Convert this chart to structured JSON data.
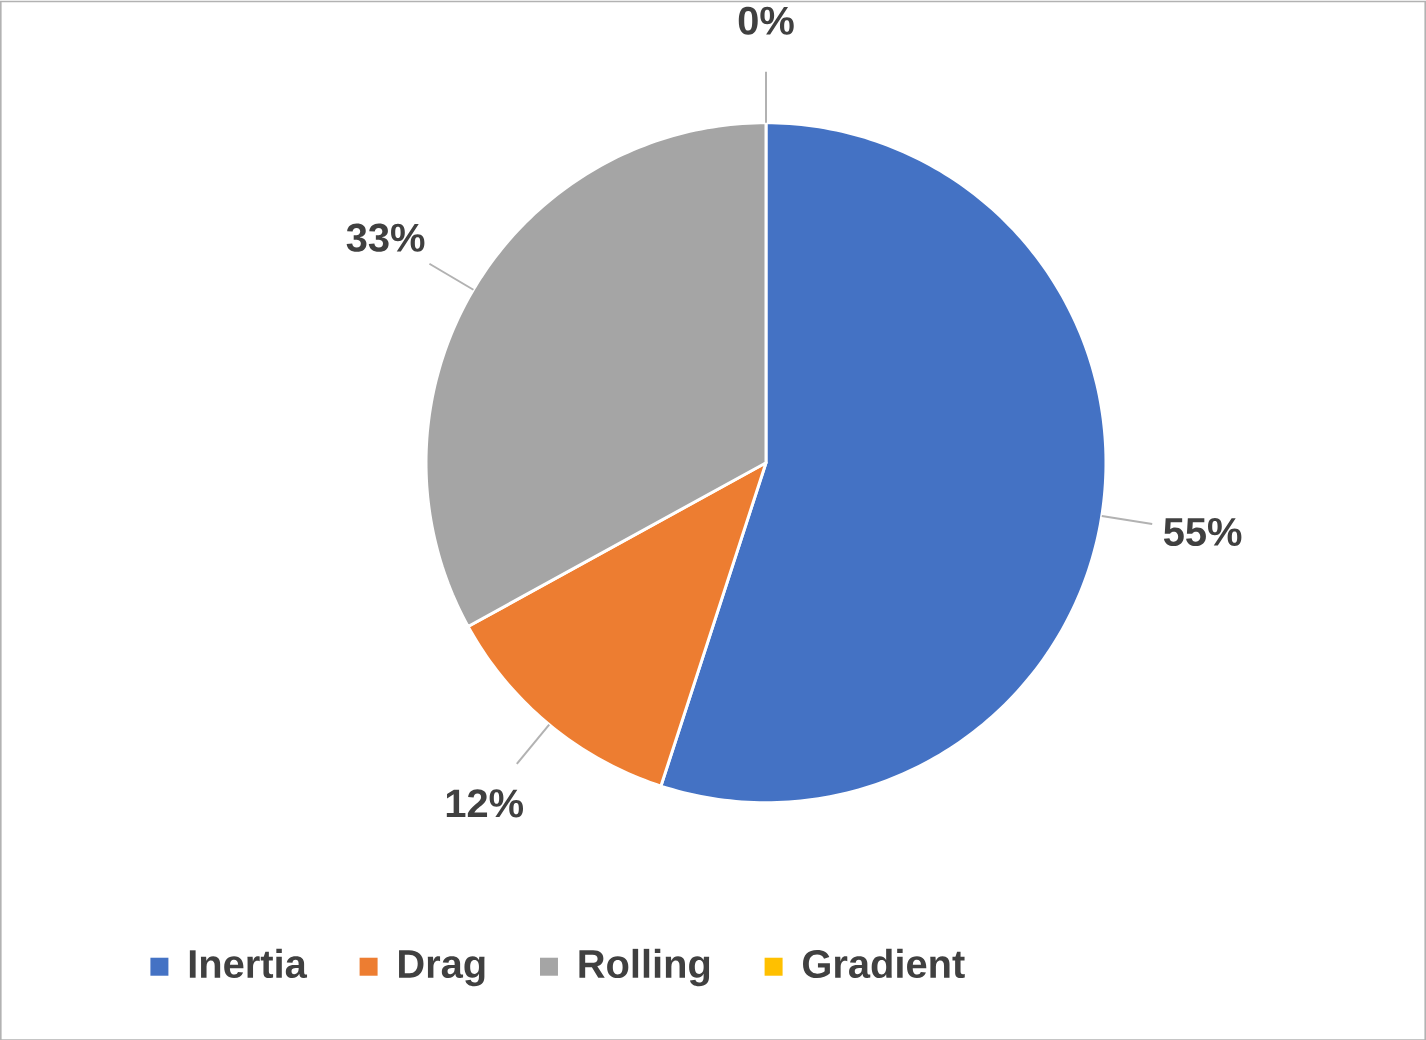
{
  "chart_data": {
    "type": "pie",
    "categories": [
      "Inertia",
      "Drag",
      "Rolling",
      "Gradient"
    ],
    "values": [
      55,
      12,
      33,
      0
    ],
    "colors": [
      "#4472c4",
      "#ed7d31",
      "#a5a5a5",
      "#ffc000"
    ],
    "value_labels": [
      "55%",
      "12%",
      "33%",
      "0%"
    ],
    "legend": "bottom"
  }
}
